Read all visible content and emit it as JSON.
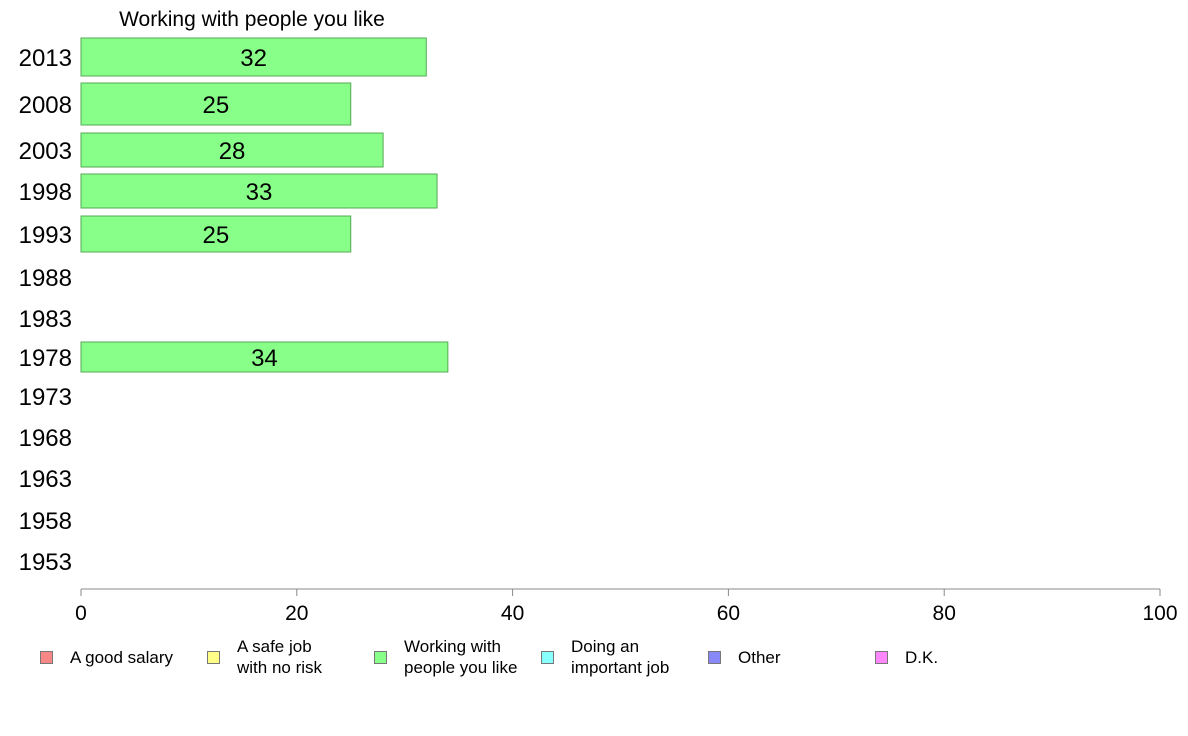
{
  "chart_data": {
    "type": "bar",
    "orientation": "horizontal",
    "title": "Working with people you like",
    "categories": [
      "2013",
      "2008",
      "2003",
      "1998",
      "1993",
      "1988",
      "1983",
      "1978",
      "1973",
      "1968",
      "1963",
      "1958",
      "1953"
    ],
    "values": [
      32,
      25,
      28,
      33,
      25,
      null,
      null,
      34,
      null,
      null,
      null,
      null,
      null
    ],
    "xlim": [
      0,
      100
    ],
    "xticks": [
      "0",
      "20",
      "40",
      "60",
      "80",
      "100"
    ],
    "bar_color": "#88ff88",
    "bar_border_color": "#55aa55",
    "grid": false
  },
  "legend": {
    "placement": "bottom",
    "items": [
      {
        "label": "A good salary",
        "color": "#f88888"
      },
      {
        "label": "A safe job\nwith no risk",
        "color": "#ffff88"
      },
      {
        "label": "Working with\npeople you like",
        "color": "#88ff88"
      },
      {
        "label": "Doing an\nimportant job",
        "color": "#88ffff"
      },
      {
        "label": "Other",
        "color": "#8888f8"
      },
      {
        "label": "D.K.",
        "color": "#ff88ff"
      }
    ]
  }
}
